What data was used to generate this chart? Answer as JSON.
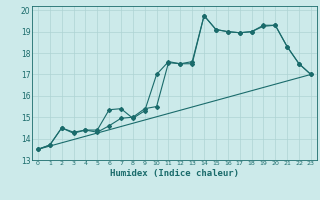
{
  "xlabel": "Humidex (Indice chaleur)",
  "bg_color": "#cceaea",
  "grid_color": "#aed4d4",
  "line_color": "#1a6b6b",
  "xlim": [
    -0.5,
    23.5
  ],
  "ylim": [
    13,
    20.2
  ],
  "xticks": [
    0,
    1,
    2,
    3,
    4,
    5,
    6,
    7,
    8,
    9,
    10,
    11,
    12,
    13,
    14,
    15,
    16,
    17,
    18,
    19,
    20,
    21,
    22,
    23
  ],
  "yticks": [
    13,
    14,
    15,
    16,
    17,
    18,
    19,
    20
  ],
  "series1_x": [
    0,
    1,
    2,
    3,
    4,
    5,
    6,
    7,
    8,
    9,
    10,
    11,
    12,
    13,
    14,
    15,
    16,
    17,
    18,
    19,
    20,
    21,
    22,
    23
  ],
  "series1_y": [
    13.5,
    13.7,
    14.5,
    14.3,
    14.4,
    14.4,
    15.35,
    15.4,
    14.95,
    15.3,
    17.0,
    17.6,
    17.5,
    17.5,
    19.75,
    19.1,
    19.0,
    18.95,
    19.0,
    19.25,
    19.3,
    18.3,
    17.5,
    17.0
  ],
  "series2_x": [
    0,
    1,
    2,
    3,
    4,
    5,
    6,
    7,
    8,
    9,
    10,
    11,
    12,
    13,
    14,
    15,
    16,
    17,
    18,
    19,
    20,
    21,
    22,
    23
  ],
  "series2_y": [
    13.5,
    13.7,
    14.5,
    14.25,
    14.4,
    14.3,
    14.6,
    14.95,
    15.0,
    15.4,
    15.5,
    17.55,
    17.5,
    17.6,
    19.75,
    19.1,
    19.0,
    18.95,
    19.0,
    19.3,
    19.3,
    18.3,
    17.5,
    17.0
  ],
  "trend_x": [
    0,
    23
  ],
  "trend_y": [
    13.5,
    17.0
  ]
}
